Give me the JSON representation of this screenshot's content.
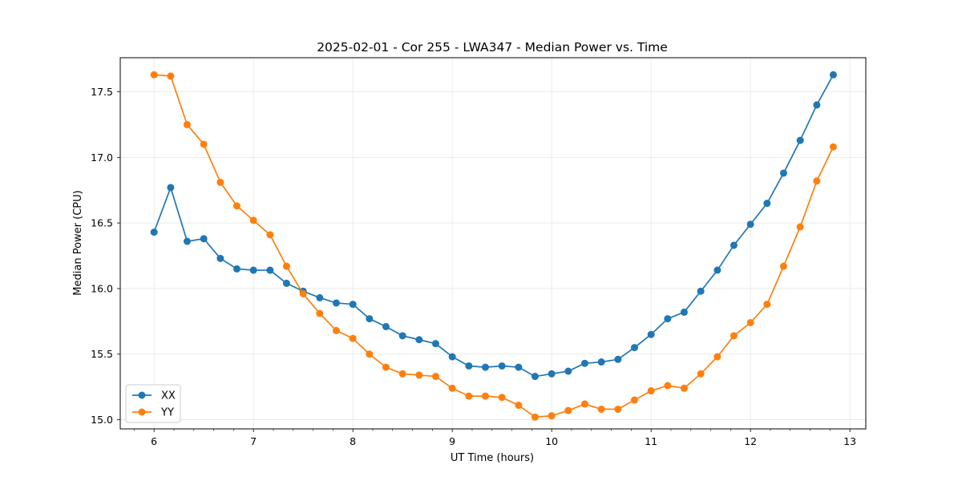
{
  "colors": {
    "xx": "#1f77b4",
    "yy": "#ff7f0e",
    "grid": "#e6e6e6",
    "axis": "#000000"
  },
  "chart_data": {
    "type": "line",
    "title": "2025-02-01 - Cor 255 - LWA347 - Median Power vs. Time",
    "xlabel": "UT Time (hours)",
    "ylabel": "Median Power (CPU)",
    "xlim": [
      5.66,
      13.16
    ],
    "ylim": [
      14.93,
      17.76
    ],
    "xticks": [
      6,
      7,
      8,
      9,
      10,
      11,
      12,
      13
    ],
    "yticks": [
      15.0,
      15.5,
      16.0,
      16.5,
      17.0,
      17.5
    ],
    "ytick_labels": [
      "15.0",
      "15.5",
      "16.0",
      "16.5",
      "17.0",
      "17.5"
    ],
    "grid": true,
    "legend_position": "lower-left",
    "x": [
      6.0,
      6.167,
      6.333,
      6.5,
      6.667,
      6.833,
      7.0,
      7.167,
      7.333,
      7.5,
      7.667,
      7.833,
      8.0,
      8.167,
      8.333,
      8.5,
      8.667,
      8.833,
      9.0,
      9.167,
      9.333,
      9.5,
      9.667,
      9.833,
      10.0,
      10.167,
      10.333,
      10.5,
      10.667,
      10.833,
      11.0,
      11.167,
      11.333,
      11.5,
      11.667,
      11.833,
      12.0,
      12.167,
      12.333,
      12.5,
      12.667,
      12.833
    ],
    "series": [
      {
        "name": "XX",
        "values": [
          16.43,
          16.77,
          16.36,
          16.38,
          16.23,
          16.15,
          16.14,
          16.14,
          16.04,
          15.98,
          15.93,
          15.89,
          15.88,
          15.77,
          15.71,
          15.64,
          15.61,
          15.58,
          15.48,
          15.41,
          15.4,
          15.41,
          15.4,
          15.33,
          15.35,
          15.37,
          15.43,
          15.44,
          15.46,
          15.55,
          15.65,
          15.77,
          15.82,
          15.98,
          16.14,
          16.33,
          16.49,
          16.65,
          16.88,
          17.13,
          17.4,
          17.63
        ]
      },
      {
        "name": "YY",
        "values": [
          17.63,
          17.62,
          17.25,
          17.1,
          16.81,
          16.63,
          16.52,
          16.41,
          16.17,
          15.96,
          15.81,
          15.68,
          15.62,
          15.5,
          15.4,
          15.35,
          15.34,
          15.33,
          15.24,
          15.18,
          15.18,
          15.17,
          15.11,
          15.02,
          15.03,
          15.07,
          15.12,
          15.08,
          15.08,
          15.15,
          15.22,
          15.26,
          15.24,
          15.35,
          15.48,
          15.64,
          15.74,
          15.88,
          16.17,
          16.47,
          16.82,
          17.08
        ]
      }
    ]
  }
}
